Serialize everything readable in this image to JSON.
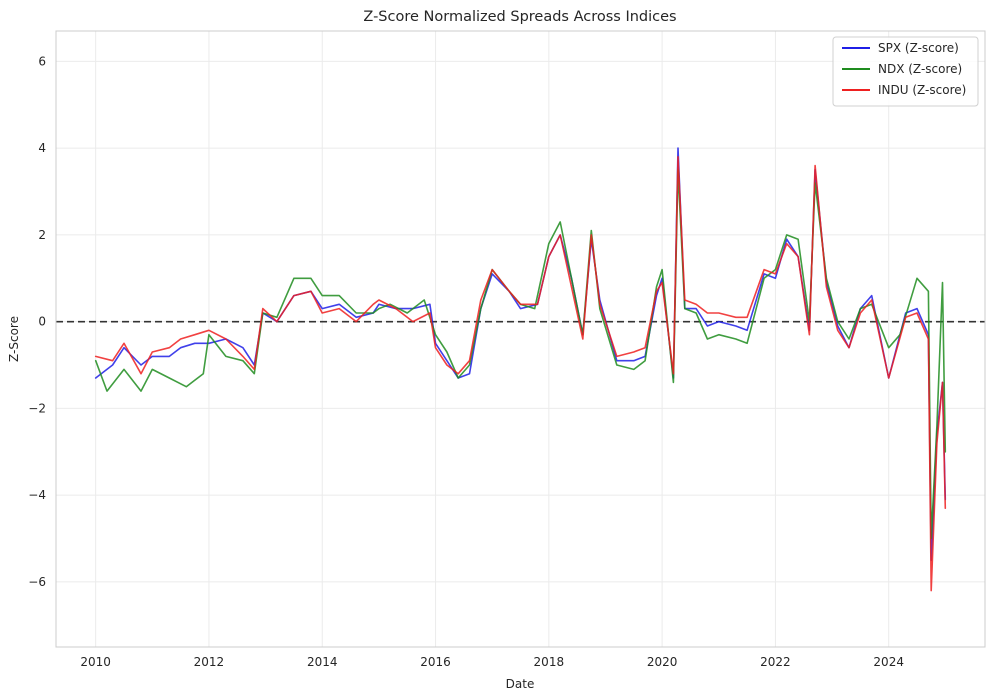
{
  "chart_data": {
    "type": "line",
    "title": "Z-Score Normalized Spreads Across Indices",
    "xlabel": "Date",
    "ylabel": "Z-Score",
    "xlim": [
      2009.3,
      2025.7
    ],
    "ylim": [
      -7.5,
      6.7
    ],
    "x_ticks": [
      2010,
      2012,
      2014,
      2016,
      2018,
      2020,
      2022,
      2024
    ],
    "x_tick_labels": [
      "2010",
      "2012",
      "2014",
      "2016",
      "2018",
      "2020",
      "2022",
      "2024"
    ],
    "y_ticks": [
      -6,
      -4,
      -2,
      0,
      2,
      4,
      6
    ],
    "y_tick_labels": [
      "−6",
      "−4",
      "−2",
      "0",
      "2",
      "4",
      "6"
    ],
    "grid": true,
    "legend_position": "top-right",
    "reference_line": {
      "y": 0,
      "style": "dashed",
      "color": "#333333"
    },
    "series": [
      {
        "name": "SPX (Z-score)",
        "color": "#1f1fe6",
        "x": [
          2010.0,
          2010.3,
          2010.5,
          2010.8,
          2011.0,
          2011.3,
          2011.5,
          2011.75,
          2012.0,
          2012.3,
          2012.6,
          2012.8,
          2012.95,
          2013.2,
          2013.5,
          2013.8,
          2014.0,
          2014.3,
          2014.6,
          2014.9,
          2015.0,
          2015.3,
          2015.6,
          2015.9,
          2016.0,
          2016.2,
          2016.4,
          2016.6,
          2016.8,
          2017.0,
          2017.3,
          2017.5,
          2017.8,
          2018.0,
          2018.2,
          2018.4,
          2018.6,
          2018.75,
          2018.9,
          2019.2,
          2019.5,
          2019.7,
          2019.9,
          2020.0,
          2020.2,
          2020.28,
          2020.4,
          2020.6,
          2020.8,
          2021.0,
          2021.3,
          2021.5,
          2021.8,
          2022.0,
          2022.2,
          2022.4,
          2022.6,
          2022.7,
          2022.9,
          2023.1,
          2023.3,
          2023.5,
          2023.7,
          2024.0,
          2024.3,
          2024.5,
          2024.7,
          2024.75,
          2024.85,
          2024.95,
          2025.0
        ],
        "y": [
          -1.3,
          -1.0,
          -0.6,
          -1.0,
          -0.8,
          -0.8,
          -0.6,
          -0.5,
          -0.5,
          -0.4,
          -0.6,
          -1.0,
          0.2,
          0.0,
          0.6,
          0.7,
          0.3,
          0.4,
          0.1,
          0.2,
          0.4,
          0.3,
          0.3,
          0.4,
          -0.5,
          -0.9,
          -1.3,
          -1.2,
          0.3,
          1.1,
          0.7,
          0.3,
          0.4,
          1.5,
          2.0,
          1.0,
          -0.3,
          1.9,
          0.5,
          -0.9,
          -0.9,
          -0.8,
          0.6,
          1.0,
          -1.3,
          4.0,
          0.3,
          0.3,
          -0.1,
          0.0,
          -0.1,
          -0.2,
          1.1,
          1.0,
          1.9,
          1.5,
          -0.2,
          3.5,
          0.9,
          -0.1,
          -0.6,
          0.3,
          0.6,
          -1.3,
          0.2,
          0.3,
          -0.3,
          -5.5,
          -2.6,
          -1.4,
          -4.1
        ]
      },
      {
        "name": "NDX (Z-score)",
        "color": "#1f8c1f",
        "x": [
          2010.0,
          2010.2,
          2010.5,
          2010.8,
          2011.0,
          2011.3,
          2011.6,
          2011.9,
          2012.0,
          2012.3,
          2012.6,
          2012.8,
          2012.95,
          2013.2,
          2013.5,
          2013.8,
          2014.0,
          2014.3,
          2014.6,
          2014.9,
          2015.0,
          2015.2,
          2015.5,
          2015.8,
          2016.0,
          2016.2,
          2016.4,
          2016.6,
          2016.8,
          2017.0,
          2017.3,
          2017.5,
          2017.75,
          2018.0,
          2018.2,
          2018.4,
          2018.6,
          2018.75,
          2018.9,
          2019.2,
          2019.5,
          2019.7,
          2019.9,
          2020.0,
          2020.2,
          2020.28,
          2020.4,
          2020.6,
          2020.8,
          2021.0,
          2021.3,
          2021.5,
          2021.8,
          2022.0,
          2022.2,
          2022.4,
          2022.6,
          2022.7,
          2022.9,
          2023.1,
          2023.3,
          2023.5,
          2023.7,
          2024.0,
          2024.2,
          2024.5,
          2024.7,
          2024.75,
          2024.85,
          2024.95,
          2025.0
        ],
        "y": [
          -0.9,
          -1.6,
          -1.1,
          -1.6,
          -1.1,
          -1.3,
          -1.5,
          -1.2,
          -0.3,
          -0.8,
          -0.9,
          -1.2,
          0.2,
          0.1,
          1.0,
          1.0,
          0.6,
          0.6,
          0.2,
          0.2,
          0.3,
          0.4,
          0.2,
          0.5,
          -0.3,
          -0.7,
          -1.3,
          -1.0,
          0.3,
          1.2,
          0.7,
          0.4,
          0.3,
          1.8,
          2.3,
          1.0,
          -0.3,
          2.1,
          0.3,
          -1.0,
          -1.1,
          -0.9,
          0.8,
          1.2,
          -1.4,
          3.5,
          0.3,
          0.2,
          -0.4,
          -0.3,
          -0.4,
          -0.5,
          1.0,
          1.2,
          2.0,
          1.9,
          0.0,
          3.2,
          1.0,
          0.0,
          -0.4,
          0.3,
          0.4,
          -0.6,
          -0.3,
          1.0,
          0.7,
          -5.0,
          -2.4,
          0.9,
          -3.0
        ]
      },
      {
        "name": "INDU (Z-score)",
        "color": "#ee2020",
        "x": [
          2010.0,
          2010.3,
          2010.5,
          2010.8,
          2011.0,
          2011.3,
          2011.5,
          2011.75,
          2012.0,
          2012.3,
          2012.6,
          2012.8,
          2012.95,
          2013.2,
          2013.5,
          2013.8,
          2014.0,
          2014.3,
          2014.6,
          2014.9,
          2015.0,
          2015.3,
          2015.6,
          2015.9,
          2016.0,
          2016.2,
          2016.4,
          2016.6,
          2016.8,
          2017.0,
          2017.3,
          2017.5,
          2017.8,
          2018.0,
          2018.2,
          2018.4,
          2018.6,
          2018.75,
          2018.9,
          2019.2,
          2019.5,
          2019.7,
          2019.9,
          2020.0,
          2020.2,
          2020.28,
          2020.4,
          2020.6,
          2020.8,
          2021.0,
          2021.3,
          2021.5,
          2021.8,
          2022.0,
          2022.2,
          2022.4,
          2022.6,
          2022.7,
          2022.9,
          2023.1,
          2023.3,
          2023.5,
          2023.7,
          2024.0,
          2024.3,
          2024.5,
          2024.7,
          2024.75,
          2024.85,
          2024.95,
          2025.0
        ],
        "y": [
          -0.8,
          -0.9,
          -0.5,
          -1.2,
          -0.7,
          -0.6,
          -0.4,
          -0.3,
          -0.2,
          -0.4,
          -0.8,
          -1.1,
          0.3,
          0.0,
          0.6,
          0.7,
          0.2,
          0.3,
          0.0,
          0.4,
          0.5,
          0.3,
          0.0,
          0.2,
          -0.6,
          -1.0,
          -1.2,
          -0.9,
          0.5,
          1.2,
          0.7,
          0.4,
          0.4,
          1.5,
          2.0,
          0.8,
          -0.4,
          2.0,
          0.4,
          -0.8,
          -0.7,
          -0.6,
          0.7,
          0.9,
          -1.2,
          3.8,
          0.5,
          0.4,
          0.2,
          0.2,
          0.1,
          0.1,
          1.2,
          1.1,
          1.8,
          1.5,
          -0.3,
          3.6,
          0.8,
          -0.2,
          -0.6,
          0.2,
          0.5,
          -1.3,
          0.1,
          0.2,
          -0.4,
          -6.2,
          -2.8,
          -1.4,
          -4.3
        ]
      }
    ]
  }
}
